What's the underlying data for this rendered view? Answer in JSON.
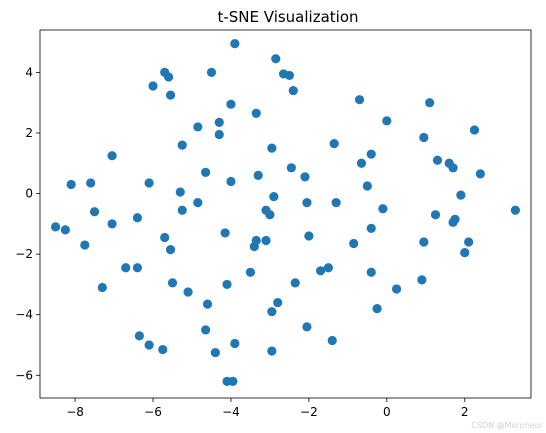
{
  "chart_data": {
    "type": "scatter",
    "title": "t-SNE Visualization",
    "xlabel": "",
    "ylabel": "",
    "xlim": [
      -8.9,
      3.7
    ],
    "ylim": [
      -6.75,
      5.4
    ],
    "xticks": [
      -8,
      -6,
      -4,
      -2,
      0,
      2
    ],
    "yticks": [
      -6,
      -4,
      -2,
      0,
      2,
      4
    ],
    "grid": false,
    "marker_color": "#1f77b4",
    "points": [
      [
        -8.5,
        -1.1
      ],
      [
        -8.25,
        -1.2
      ],
      [
        -8.1,
        0.3
      ],
      [
        -7.75,
        -1.7
      ],
      [
        -7.6,
        0.35
      ],
      [
        -7.5,
        -0.6
      ],
      [
        -7.3,
        -3.1
      ],
      [
        -7.05,
        1.25
      ],
      [
        -7.05,
        -1.0
      ],
      [
        -6.7,
        -2.45
      ],
      [
        -6.4,
        -2.45
      ],
      [
        -6.4,
        -0.8
      ],
      [
        -6.35,
        -4.7
      ],
      [
        -6.1,
        -5.0
      ],
      [
        -6.1,
        0.35
      ],
      [
        -6.0,
        3.55
      ],
      [
        -5.7,
        4.0
      ],
      [
        -5.6,
        3.85
      ],
      [
        -5.55,
        3.25
      ],
      [
        -5.7,
        -1.45
      ],
      [
        -5.55,
        -1.85
      ],
      [
        -5.5,
        -2.95
      ],
      [
        -5.75,
        -5.15
      ],
      [
        -5.3,
        0.05
      ],
      [
        -5.25,
        1.6
      ],
      [
        -5.25,
        -0.55
      ],
      [
        -5.1,
        -3.25
      ],
      [
        -4.85,
        2.2
      ],
      [
        -4.85,
        -0.3
      ],
      [
        -4.65,
        0.7
      ],
      [
        -4.65,
        -4.5
      ],
      [
        -4.6,
        -3.65
      ],
      [
        -4.5,
        4.0
      ],
      [
        -4.4,
        -5.25
      ],
      [
        -4.3,
        2.35
      ],
      [
        -4.3,
        1.95
      ],
      [
        -4.15,
        -1.3
      ],
      [
        -4.1,
        -3.0
      ],
      [
        -4.1,
        -6.2
      ],
      [
        -4.0,
        2.95
      ],
      [
        -4.0,
        0.4
      ],
      [
        -3.95,
        -6.2
      ],
      [
        -3.9,
        -4.95
      ],
      [
        -3.9,
        4.95
      ],
      [
        -3.5,
        -2.6
      ],
      [
        -3.4,
        -1.75
      ],
      [
        -3.35,
        -1.55
      ],
      [
        -3.35,
        2.65
      ],
      [
        -3.3,
        0.6
      ],
      [
        -3.1,
        -0.55
      ],
      [
        -3.1,
        -1.55
      ],
      [
        -3.0,
        -0.7
      ],
      [
        -2.95,
        1.5
      ],
      [
        -2.95,
        -3.9
      ],
      [
        -2.95,
        -5.2
      ],
      [
        -2.9,
        -0.1
      ],
      [
        -2.85,
        4.45
      ],
      [
        -2.8,
        -3.6
      ],
      [
        -2.65,
        3.95
      ],
      [
        -2.5,
        3.9
      ],
      [
        -2.4,
        3.4
      ],
      [
        -2.45,
        0.85
      ],
      [
        -2.35,
        -2.95
      ],
      [
        -2.1,
        0.55
      ],
      [
        -2.05,
        -0.3
      ],
      [
        -2.0,
        -1.4
      ],
      [
        -2.05,
        -4.4
      ],
      [
        -1.7,
        -2.55
      ],
      [
        -1.5,
        -2.45
      ],
      [
        -1.35,
        1.65
      ],
      [
        -1.3,
        -0.3
      ],
      [
        -1.4,
        -4.85
      ],
      [
        -0.85,
        -1.65
      ],
      [
        -0.7,
        3.1
      ],
      [
        -0.65,
        1.0
      ],
      [
        -0.5,
        0.25
      ],
      [
        -0.4,
        1.3
      ],
      [
        -0.4,
        -1.15
      ],
      [
        -0.4,
        -2.6
      ],
      [
        -0.25,
        -3.8
      ],
      [
        -0.1,
        -0.5
      ],
      [
        0.0,
        2.4
      ],
      [
        0.25,
        -3.15
      ],
      [
        0.9,
        -2.85
      ],
      [
        0.95,
        -1.6
      ],
      [
        0.95,
        1.85
      ],
      [
        1.1,
        3.0
      ],
      [
        1.25,
        -0.7
      ],
      [
        1.3,
        1.1
      ],
      [
        1.6,
        1.0
      ],
      [
        1.7,
        -0.95
      ],
      [
        1.7,
        0.85
      ],
      [
        1.75,
        -0.85
      ],
      [
        1.9,
        -0.05
      ],
      [
        2.0,
        -1.95
      ],
      [
        2.1,
        -1.6
      ],
      [
        2.25,
        2.1
      ],
      [
        2.4,
        0.65
      ],
      [
        3.3,
        -0.55
      ]
    ]
  },
  "watermark": "CSDN @Morpheor"
}
